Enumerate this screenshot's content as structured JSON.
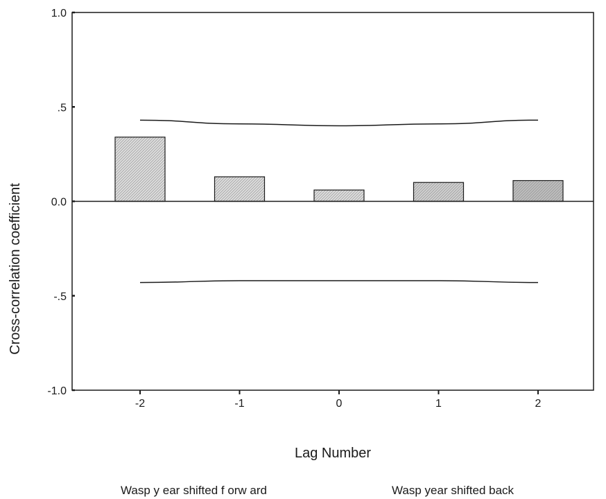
{
  "chart_data": {
    "type": "bar",
    "categories": [
      "-2",
      "-1",
      "0",
      "1",
      "2"
    ],
    "values": [
      0.34,
      0.13,
      0.06,
      0.1,
      0.11
    ],
    "ylim": [
      -1.0,
      1.0
    ],
    "yticks": [
      "1.0",
      ".5",
      "0.0",
      "-.5",
      "-1.0"
    ],
    "ytick_values": [
      1.0,
      0.5,
      0.0,
      -0.5,
      -1.0
    ],
    "xlabel": "Lag Number",
    "ylabel": "Cross-correlation coefficient",
    "confidence_upper": [
      0.43,
      0.41,
      0.4,
      0.41,
      0.43
    ],
    "confidence_lower": [
      -0.43,
      -0.42,
      -0.42,
      -0.42,
      -0.43
    ],
    "grid": false,
    "bar_colors": [
      "#dcdcdc",
      "#dcdcdc",
      "#dcdcdc",
      "#cfcfcf",
      "#bdbdbd"
    ],
    "annotations": {
      "left": "Wasp y ear shifted f orw ard",
      "right": "Wasp year shifted back"
    }
  }
}
